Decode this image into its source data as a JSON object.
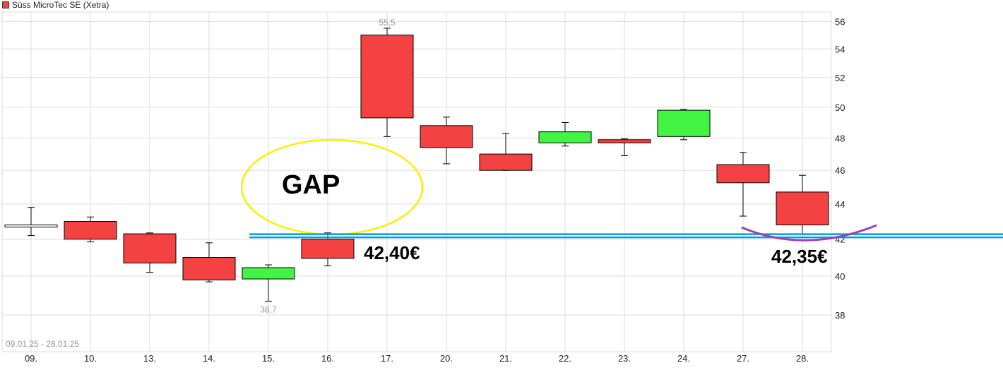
{
  "chart_data": {
    "type": "candlestick",
    "title": "Süss MicroTec SE (Xetra)",
    "legend": {
      "label": "Süss MicroTec SE (Xetra)",
      "color": "#f44242",
      "placement": "top-left"
    },
    "date_range": "09.01.25 - 28.01.25",
    "categories": [
      "09.",
      "10.",
      "13.",
      "14.",
      "15.",
      "16.",
      "17.",
      "20.",
      "21.",
      "22.",
      "23.",
      "24.",
      "27.",
      "28."
    ],
    "ohlc": [
      {
        "open": 42.8,
        "high": 43.8,
        "low": 42.2,
        "close": 42.75
      },
      {
        "open": 43.0,
        "high": 43.25,
        "low": 41.85,
        "close": 42.0
      },
      {
        "open": 42.3,
        "high": 42.35,
        "low": 40.2,
        "close": 40.7
      },
      {
        "open": 41.0,
        "high": 41.8,
        "low": 39.7,
        "close": 39.8
      },
      {
        "open": 39.85,
        "high": 40.6,
        "low": 38.7,
        "close": 40.45
      },
      {
        "open": 42.0,
        "high": 42.35,
        "low": 40.55,
        "close": 40.95
      },
      {
        "open": 55.0,
        "high": 55.5,
        "low": 48.1,
        "close": 49.3
      },
      {
        "open": 48.8,
        "high": 49.35,
        "low": 46.4,
        "close": 47.4
      },
      {
        "open": 47.0,
        "high": 48.3,
        "low": 46.0,
        "close": 46.0
      },
      {
        "open": 47.7,
        "high": 49.0,
        "low": 47.5,
        "close": 48.4
      },
      {
        "open": 47.9,
        "high": 47.95,
        "low": 46.9,
        "close": 47.7
      },
      {
        "open": 48.1,
        "high": 49.85,
        "low": 47.9,
        "close": 49.8
      },
      {
        "open": 46.35,
        "high": 47.1,
        "low": 43.3,
        "close": 45.25
      },
      {
        "open": 44.7,
        "high": 45.7,
        "low": 42.3,
        "close": 42.8
      }
    ],
    "y_scale": "log",
    "ylim": [
      36.2,
      56.7
    ],
    "y_ticks": [
      "38",
      "40",
      "42",
      "44",
      "46",
      "48",
      "50",
      "52",
      "54",
      "56"
    ],
    "y_axis_position": "right",
    "grid": true,
    "colors": {
      "up": "#44f444",
      "down": "#f44242",
      "doji": "#ffffff",
      "grid": "#dddddd"
    },
    "high_label": {
      "text": "55,5",
      "category_index": 6
    },
    "low_label": {
      "text": "38,7",
      "category_index": 4
    },
    "annotations": {
      "gap_text": "GAP",
      "gap_ellipse_color": "#ffee00",
      "price_label_left": "42,40€",
      "price_label_right": "42,35€",
      "support_line": {
        "value": 42.2,
        "color": "#009ee0"
      },
      "arc_color": "#a040b0"
    }
  }
}
